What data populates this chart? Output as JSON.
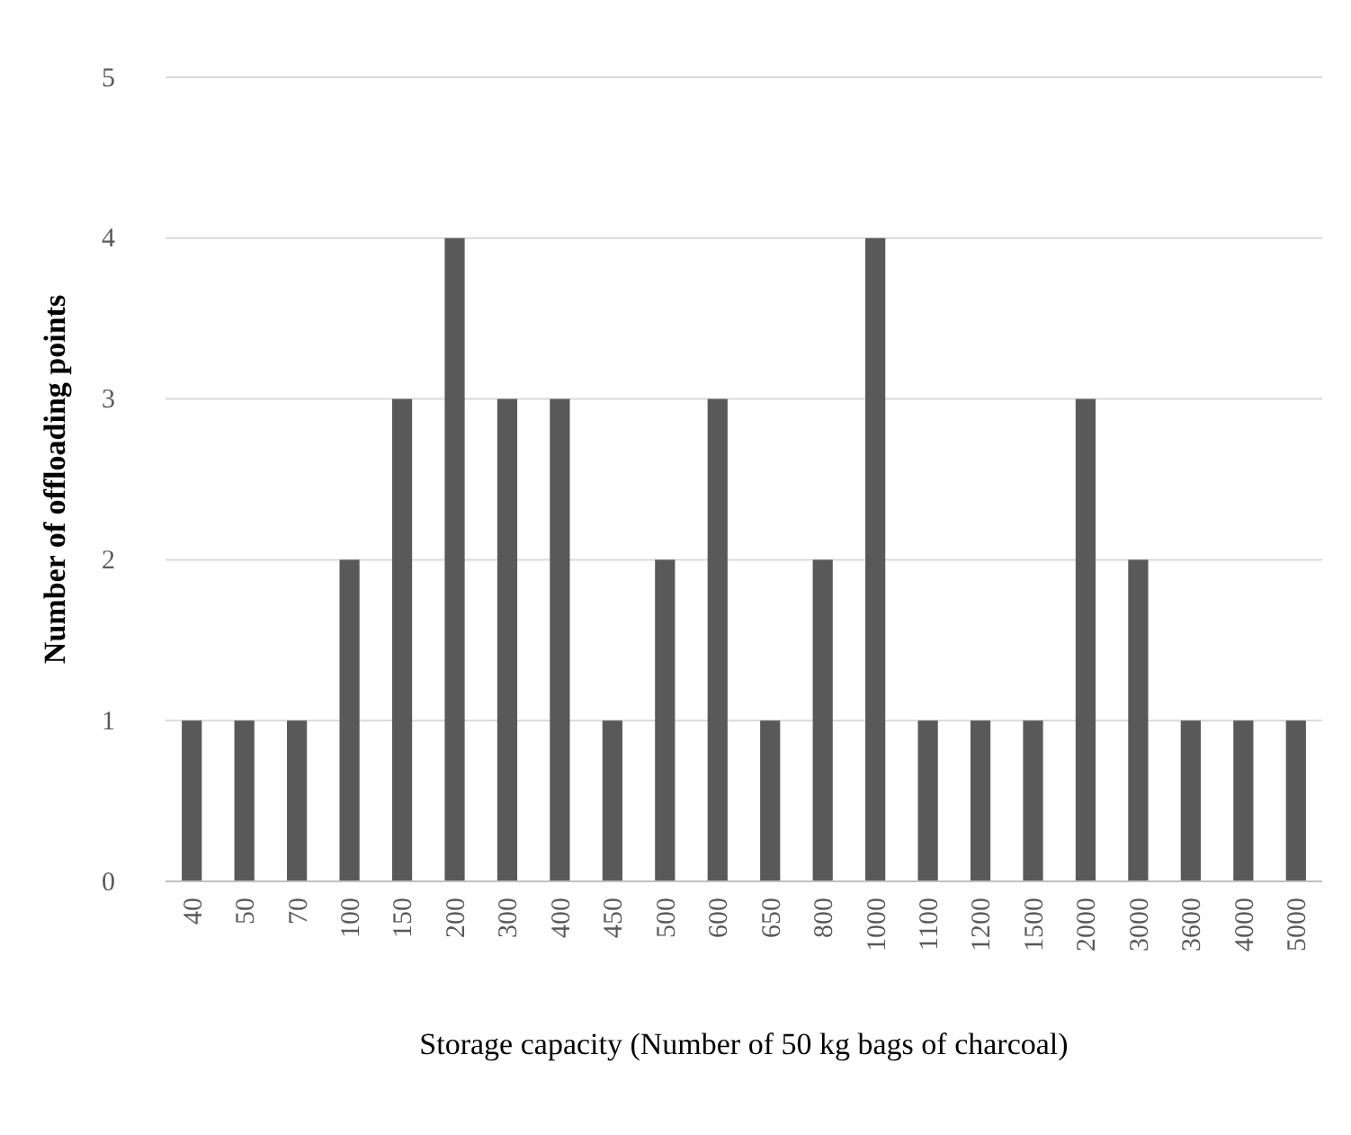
{
  "chart_data": {
    "type": "bar",
    "xlabel": "Storage capacity (Number of 50 kg bags of charcoal)",
    "ylabel": "Number of offloading points",
    "categories": [
      "40",
      "50",
      "70",
      "100",
      "150",
      "200",
      "300",
      "400",
      "450",
      "500",
      "600",
      "650",
      "800",
      "1000",
      "1100",
      "1200",
      "1500",
      "2000",
      "3000",
      "3600",
      "4000",
      "5000"
    ],
    "values": [
      1,
      1,
      1,
      2,
      3,
      4,
      3,
      3,
      1,
      2,
      3,
      1,
      2,
      4,
      1,
      1,
      1,
      3,
      2,
      1,
      1,
      1
    ],
    "color": "#595959",
    "ylim": [
      0,
      5
    ],
    "yticks": [
      0,
      1,
      2,
      3,
      4,
      5
    ],
    "grid": "y"
  }
}
